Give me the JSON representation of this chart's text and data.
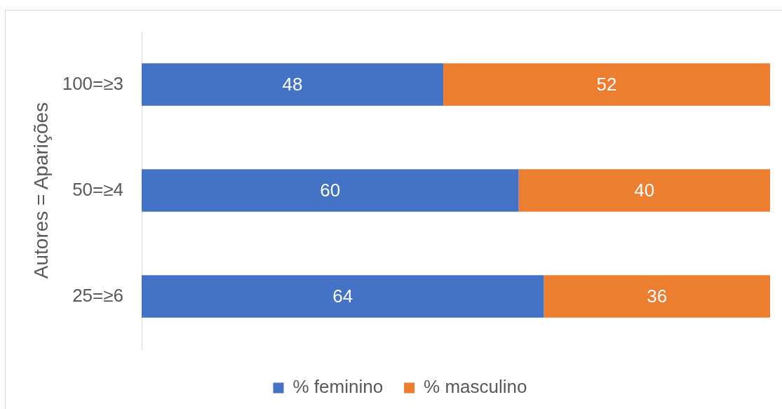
{
  "chart_data": {
    "type": "bar",
    "orientation": "horizontal",
    "stacked": true,
    "ylabel": "Autores = Aparições",
    "categories": [
      "100=≥3",
      "50=≥4",
      "25=≥6"
    ],
    "series": [
      {
        "name": "% feminino",
        "color": "#4472c4",
        "values": [
          48,
          60,
          64
        ]
      },
      {
        "name": "% masculino",
        "color": "#ed7d31",
        "values": [
          52,
          40,
          36
        ]
      }
    ],
    "xlim": [
      0,
      100
    ],
    "tick_labels": "y",
    "data_labels": true,
    "legend": "bottom"
  }
}
